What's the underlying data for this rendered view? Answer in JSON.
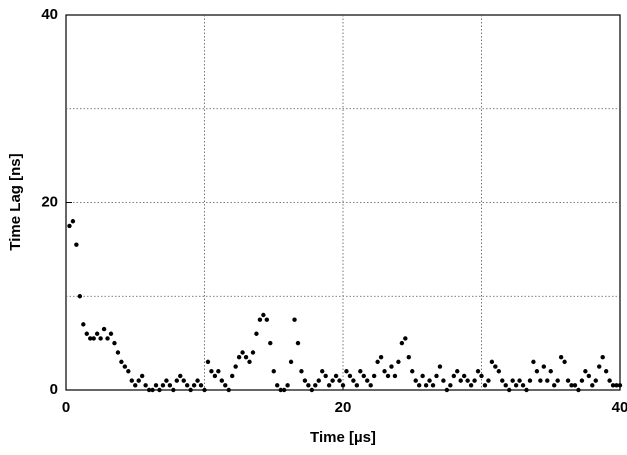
{
  "chart_data": {
    "type": "scatter",
    "x_label": "Time [µs]",
    "y_label": "Time Lag [ns]",
    "xlim": [
      0,
      40
    ],
    "ylim": [
      0,
      40
    ],
    "xticks": [
      0,
      20,
      40
    ],
    "yticks": [
      0,
      20,
      40
    ],
    "x_grid": [
      10,
      20,
      30
    ],
    "y_grid": [
      10,
      20,
      30
    ],
    "grid": true,
    "color": "#000000",
    "series": [
      {
        "x": [
          0.25,
          0.5,
          0.75,
          1,
          1.25,
          1.5,
          1.75,
          2,
          2.25,
          2.5,
          2.75,
          3,
          3.25,
          3.5,
          3.75,
          4,
          4.25,
          4.5,
          4.75,
          5,
          5.25,
          5.5,
          5.75,
          6,
          6.25,
          6.5,
          6.75,
          7,
          7.25,
          7.5,
          7.75,
          8,
          8.25,
          8.5,
          8.75,
          9,
          9.25,
          9.5,
          9.75,
          10,
          10.25,
          10.5,
          10.75,
          11,
          11.25,
          11.5,
          11.75,
          12,
          12.25,
          12.5,
          12.75,
          13,
          13.25,
          13.5,
          13.75,
          14,
          14.25,
          14.5,
          14.75,
          15,
          15.25,
          15.5,
          15.75,
          16,
          16.25,
          16.5,
          16.75,
          17,
          17.25,
          17.5,
          17.75,
          18,
          18.25,
          18.5,
          18.75,
          19,
          19.25,
          19.5,
          19.75,
          20,
          20.25,
          20.5,
          20.75,
          21,
          21.25,
          21.5,
          21.75,
          22,
          22.25,
          22.5,
          22.75,
          23,
          23.25,
          23.5,
          23.75,
          24,
          24.25,
          24.5,
          24.75,
          25,
          25.25,
          25.5,
          25.75,
          26,
          26.25,
          26.5,
          26.75,
          27,
          27.25,
          27.5,
          27.75,
          28,
          28.25,
          28.5,
          28.75,
          29,
          29.25,
          29.5,
          29.75,
          30,
          30.25,
          30.5,
          30.75,
          31,
          31.25,
          31.5,
          31.75,
          32,
          32.25,
          32.5,
          32.75,
          33,
          33.25,
          33.5,
          33.75,
          34,
          34.25,
          34.5,
          34.75,
          35,
          35.25,
          35.5,
          35.75,
          36,
          36.25,
          36.5,
          36.75,
          37,
          37.25,
          37.5,
          37.75,
          38,
          38.25,
          38.5,
          38.75,
          39,
          39.25,
          39.5,
          39.75,
          40
        ],
        "values": [
          17.5,
          18,
          15.5,
          10,
          7,
          6,
          5.5,
          5.5,
          6,
          5.5,
          6.5,
          5.5,
          6,
          5,
          4,
          3,
          2.5,
          2,
          1,
          0.5,
          1,
          1.5,
          0.5,
          0,
          0,
          0.5,
          0,
          0.5,
          1,
          0.5,
          0,
          1,
          1.5,
          1,
          0.5,
          0,
          0.5,
          1,
          0.5,
          0,
          3,
          2,
          1.5,
          2,
          1,
          0.5,
          0,
          1.5,
          2.5,
          3.5,
          4,
          3.5,
          3,
          4,
          6,
          7.5,
          8,
          7.5,
          5,
          2,
          0.5,
          0,
          0,
          0.5,
          3,
          7.5,
          5,
          2,
          1,
          0.5,
          0,
          0.5,
          1,
          2,
          1.5,
          0.5,
          1,
          1.5,
          1,
          0.5,
          2,
          1.5,
          1,
          0.5,
          2,
          1.5,
          1,
          0.5,
          1.5,
          3,
          3.5,
          2,
          1.5,
          2.5,
          1.5,
          3,
          5,
          5.5,
          3.5,
          2,
          1,
          0.5,
          1.5,
          0.5,
          1,
          0.5,
          1.5,
          2.5,
          1,
          0,
          0.5,
          1.5,
          2,
          1,
          1.5,
          1,
          0.5,
          1,
          2,
          1.5,
          0.5,
          1,
          3,
          2.5,
          2,
          1,
          0.5,
          0,
          1,
          0.5,
          1,
          0.5,
          0,
          1,
          3,
          2,
          1,
          2.5,
          1,
          2,
          0.5,
          1,
          3.5,
          3,
          1,
          0.5,
          0.5,
          0,
          1,
          2,
          1.5,
          0.5,
          1,
          2.5,
          3.5,
          2,
          1,
          0.5,
          0.5,
          0.5
        ]
      }
    ]
  }
}
